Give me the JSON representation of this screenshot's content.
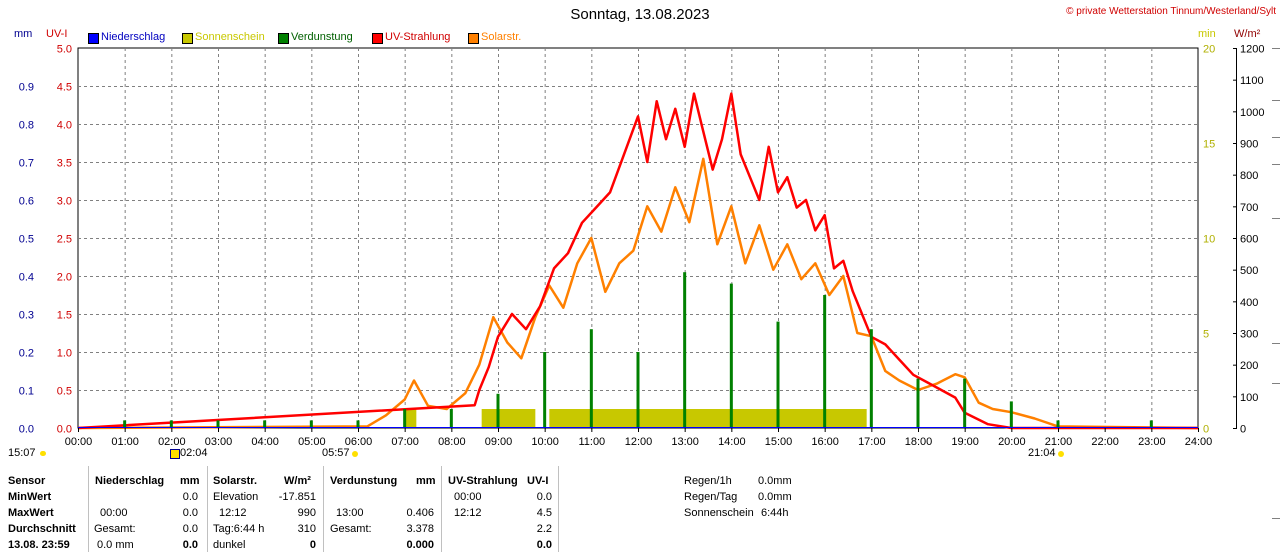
{
  "header": {
    "title": "Sonntag, 13.08.2023",
    "credit": "© private Wetterstation Tinnum/Westerland/Sylt",
    "unit_left1": "mm",
    "unit_left2": "UV-I",
    "unit_right1": "min",
    "unit_right2": "W/m²"
  },
  "legend": [
    {
      "label": "Niederschlag",
      "color": "#0000ff",
      "text_color": "#0000c0"
    },
    {
      "label": "Sonnenschein",
      "color": "#c8c800",
      "text_color": "#c8c800"
    },
    {
      "label": "Verdunstung",
      "color": "#008000",
      "text_color": "#006000"
    },
    {
      "label": "UV-Strahlung",
      "color": "#ff0000",
      "text_color": "#d00000"
    },
    {
      "label": "Solarstr.",
      "color": "#ff8000",
      "text_color": "#ff8000"
    }
  ],
  "sun_markers": {
    "sunrise_time": "05:57",
    "sunset_time": "21:04",
    "moonrise_time": "02:04",
    "moonset_time": "15:07"
  },
  "chart_data": {
    "type": "line",
    "x_ticks": [
      "00:00",
      "01:00",
      "02:00",
      "03:00",
      "04:00",
      "05:00",
      "06:00",
      "07:00",
      "08:00",
      "09:00",
      "10:00",
      "11:00",
      "12:00",
      "13:00",
      "14:00",
      "15:00",
      "16:00",
      "17:00",
      "18:00",
      "19:00",
      "20:00",
      "21:00",
      "22:00",
      "23:00",
      "24:00"
    ],
    "y_mm_ticks": [
      "0.0",
      "0.1",
      "0.2",
      "0.3",
      "0.4",
      "0.5",
      "0.6",
      "0.7",
      "0.8",
      "0.9"
    ],
    "y_uv_ticks": [
      "0.0",
      "0.5",
      "1.0",
      "1.5",
      "2.0",
      "2.5",
      "3.0",
      "3.5",
      "4.0",
      "4.5",
      "5.0"
    ],
    "y_min_ticks": [
      "0",
      "5",
      "10",
      "15",
      "20"
    ],
    "y_wm2_ticks": [
      "0",
      "100",
      "200",
      "300",
      "400",
      "500",
      "600",
      "700",
      "800",
      "900",
      "1000",
      "1100",
      "1200"
    ],
    "ylim_uv": [
      0,
      5
    ],
    "ylim_wm2": [
      0,
      1200
    ],
    "ylim_mm": [
      0,
      1
    ],
    "ylim_min": [
      0,
      20
    ],
    "grid": true,
    "series": [
      {
        "name": "UV-Strahlung",
        "color": "#ff0000",
        "axis": "uv",
        "x": [
          0,
          8.5,
          8.6,
          8.8,
          9.0,
          9.3,
          9.6,
          9.9,
          10.2,
          10.5,
          10.8,
          11.1,
          11.4,
          11.7,
          12.0,
          12.2,
          12.4,
          12.6,
          12.8,
          13.0,
          13.2,
          13.4,
          13.6,
          13.8,
          14.0,
          14.2,
          14.4,
          14.6,
          14.8,
          15.0,
          15.2,
          15.4,
          15.6,
          15.8,
          16.0,
          16.2,
          16.4,
          16.6,
          16.8,
          17.0,
          17.3,
          17.6,
          17.9,
          18.2,
          18.5,
          18.8,
          19.0,
          19.5,
          20.0,
          24
        ],
        "y": [
          0,
          0.3,
          0.5,
          0.8,
          1.2,
          1.5,
          1.3,
          1.6,
          2.1,
          2.3,
          2.7,
          2.9,
          3.1,
          3.6,
          4.1,
          3.5,
          4.3,
          3.8,
          4.2,
          3.7,
          4.4,
          3.9,
          3.4,
          3.8,
          4.4,
          3.6,
          3.3,
          3.0,
          3.7,
          3.1,
          3.3,
          2.9,
          3.0,
          2.6,
          2.8,
          2.1,
          2.2,
          1.8,
          1.5,
          1.2,
          1.1,
          0.9,
          0.7,
          0.6,
          0.5,
          0.4,
          0.2,
          0.05,
          0,
          0
        ]
      },
      {
        "name": "Solarstr.",
        "color": "#ff8000",
        "axis": "wm2",
        "x": [
          0,
          6.2,
          6.6,
          7.0,
          7.2,
          7.5,
          7.9,
          8.3,
          8.6,
          8.9,
          9.2,
          9.5,
          9.8,
          10.1,
          10.4,
          10.7,
          11.0,
          11.3,
          11.6,
          11.9,
          12.2,
          12.5,
          12.8,
          13.1,
          13.4,
          13.7,
          14.0,
          14.3,
          14.6,
          14.9,
          15.2,
          15.5,
          15.8,
          16.1,
          16.4,
          16.7,
          17.0,
          17.3,
          17.6,
          18.0,
          18.4,
          18.8,
          19.0,
          19.3,
          19.6,
          20.0,
          20.5,
          21.0,
          24
        ],
        "y": [
          0,
          5,
          40,
          90,
          150,
          70,
          60,
          110,
          200,
          350,
          270,
          220,
          350,
          450,
          380,
          520,
          600,
          430,
          520,
          560,
          700,
          620,
          760,
          650,
          850,
          580,
          700,
          520,
          640,
          500,
          580,
          470,
          520,
          420,
          480,
          300,
          290,
          180,
          150,
          120,
          140,
          170,
          160,
          80,
          60,
          50,
          30,
          5,
          0
        ]
      }
    ],
    "bars": [
      {
        "name": "Sonnenschein",
        "color": "#c8c800",
        "axis": "min",
        "segments": [
          [
            7.0,
            7.25
          ],
          [
            8.65,
            9.8
          ],
          [
            10.1,
            16.9
          ]
        ],
        "value": 1
      },
      {
        "name": "Verdunstung",
        "color": "#008000",
        "axis": "mm",
        "x": [
          1,
          2,
          3,
          4,
          5,
          6,
          7,
          8,
          9,
          10,
          11,
          12,
          13,
          14,
          15,
          16,
          17,
          18,
          19,
          20,
          21,
          23
        ],
        "y": [
          0.02,
          0.02,
          0.02,
          0.02,
          0.02,
          0.02,
          0.05,
          0.05,
          0.09,
          0.2,
          0.26,
          0.2,
          0.41,
          0.38,
          0.28,
          0.35,
          0.26,
          0.13,
          0.13,
          0.07,
          0.02,
          0.02
        ]
      }
    ]
  },
  "table": {
    "col_sensor": {
      "head": "Sensor",
      "rows": [
        "MinWert",
        "MaxWert",
        "Durchschnitt",
        "13.08. 23:59"
      ]
    },
    "col_rain": {
      "head": "Niederschlag",
      "unit": "mm",
      "r1_time": "00:00",
      "r1_val": "0.0",
      "r2_val": "0.0",
      "r3_label": "Gesamt:",
      "r3_val": "0.0",
      "r4_label": "0.0 mm",
      "r4_val": "0.0"
    },
    "col_solar": {
      "head": "Solarstr.",
      "unit": "W/m²",
      "r1_label": "Elevation",
      "r1_val": "-17.851",
      "r2_time": "12:12",
      "r2_val": "990",
      "r3_label": "Tag:6:44 h",
      "r3_val": "310",
      "r4_label": "dunkel",
      "r4_val": "0"
    },
    "col_evap": {
      "head": "Verdunstung",
      "unit": "mm",
      "r2_time": "13:00",
      "r2_val": "0.406",
      "r3_label": "Gesamt:",
      "r3_val": "3.378",
      "r4_val": "0.000"
    },
    "col_uv": {
      "head": "UV-Strahlung",
      "unit": "UV-I",
      "r1_time": "00:00",
      "r1_val": "0.0",
      "r2_time": "12:12",
      "r2_val": "4.5",
      "r3_val": "2.2",
      "r4_val": "0.0"
    },
    "extra": [
      {
        "label": "Regen/1h",
        "value": "0.0mm"
      },
      {
        "label": "Regen/Tag",
        "value": "0.0mm"
      },
      {
        "label": "Sonnenschein",
        "value": "6:44h"
      }
    ]
  }
}
